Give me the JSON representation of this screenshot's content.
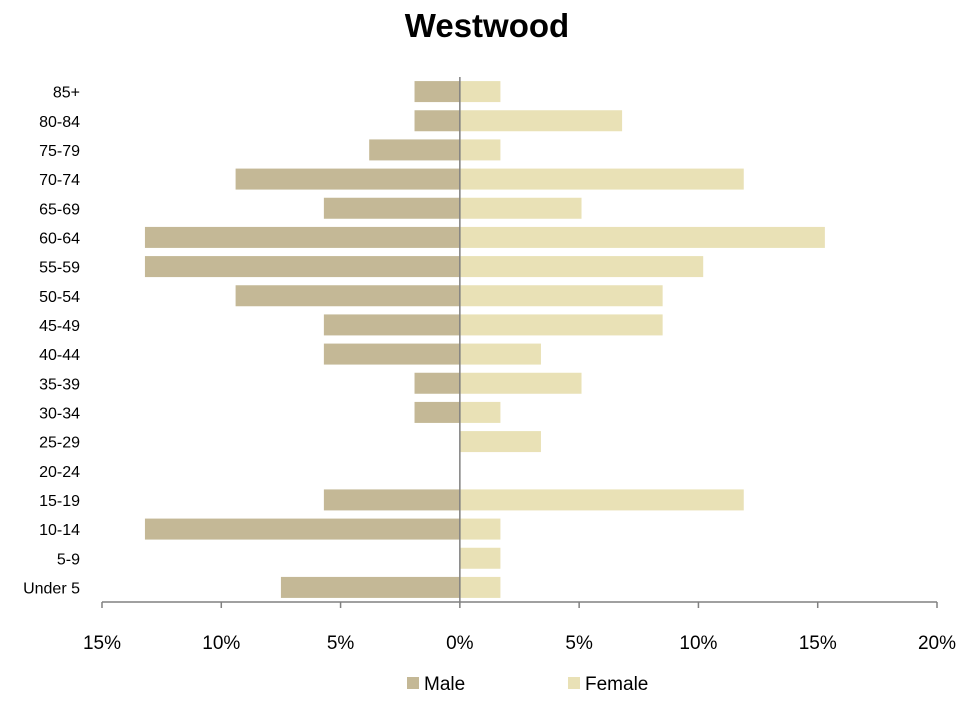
{
  "chart_data": {
    "type": "bar",
    "orientation": "horizontal",
    "title": "Westwood",
    "xlabel": "",
    "ylabel": "",
    "categories": [
      "85+",
      "80-84",
      "75-79",
      "70-74",
      "65-69",
      "60-64",
      "55-59",
      "50-54",
      "45-49",
      "40-44",
      "35-39",
      "30-34",
      "25-29",
      "20-24",
      "15-19",
      "10-14",
      "5-9",
      "Under 5"
    ],
    "series": [
      {
        "name": "Male",
        "color": "#c4b896",
        "values": [
          -1.9,
          -1.9,
          -3.8,
          -9.4,
          -5.7,
          -13.2,
          -13.2,
          -9.4,
          -5.7,
          -5.7,
          -1.9,
          -1.9,
          0,
          0,
          -5.7,
          -13.2,
          0,
          -7.5
        ]
      },
      {
        "name": "Female",
        "color": "#e9e1b6",
        "values": [
          1.7,
          6.8,
          1.7,
          11.9,
          5.1,
          15.3,
          10.2,
          8.5,
          8.5,
          3.4,
          5.1,
          1.7,
          3.4,
          0,
          11.9,
          1.7,
          1.7,
          1.7
        ]
      }
    ],
    "xlim": [
      -15,
      20
    ],
    "xticks": [
      -15,
      -10,
      -5,
      0,
      5,
      10,
      15,
      20
    ],
    "xtick_labels": [
      "15%",
      "10%",
      "5%",
      "0%",
      "5%",
      "10%",
      "15%",
      "20%"
    ],
    "grid": false,
    "legend_position": "bottom"
  }
}
